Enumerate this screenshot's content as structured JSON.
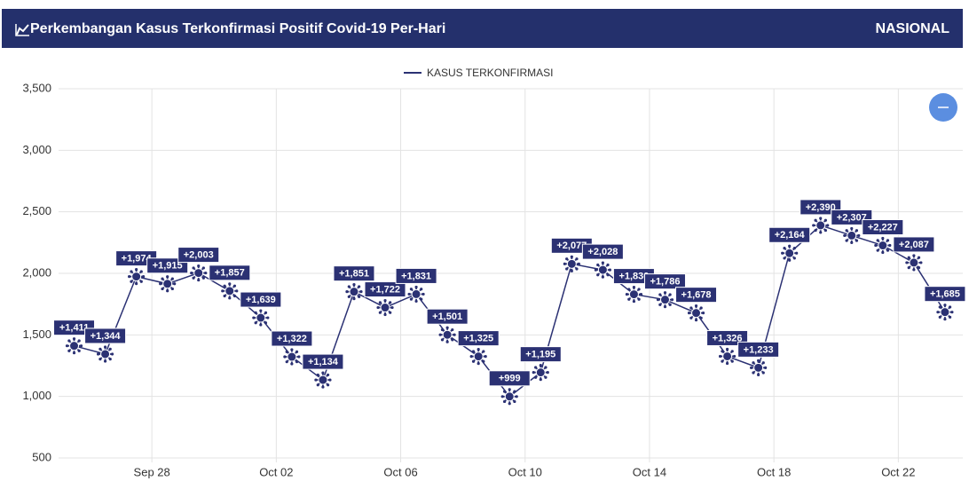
{
  "header": {
    "title": "Perkembangan Kasus Terkonfirmasi Positif Covid-19 Per-Hari",
    "scope": "NASIONAL"
  },
  "chart_data": {
    "type": "line",
    "categories": [
      "Sep 25",
      "Sep 26",
      "Sep 27",
      "Sep 28",
      "Sep 29",
      "Sep 30",
      "Oct 01",
      "Oct 02",
      "Oct 03",
      "Oct 04",
      "Oct 05",
      "Oct 06",
      "Oct 07",
      "Oct 08",
      "Oct 09",
      "Oct 10",
      "Oct 11",
      "Oct 12",
      "Oct 13",
      "Oct 14",
      "Oct 15",
      "Oct 16",
      "Oct 17",
      "Oct 18",
      "Oct 19",
      "Oct 20",
      "Oct 21",
      "Oct 22",
      "Oct 23"
    ],
    "series": [
      {
        "name": "KASUS TERKONFIRMASI",
        "color": "#2b3173",
        "values": [
          1411,
          1344,
          1974,
          1915,
          2003,
          1857,
          1639,
          1322,
          1134,
          1851,
          1722,
          1831,
          1501,
          1325,
          999,
          1195,
          2077,
          2028,
          1830,
          1786,
          1678,
          1326,
          1233,
          2164,
          2390,
          2307,
          2227,
          2087,
          1685
        ],
        "value_labels": [
          "+1,411",
          "+1,344",
          "+1,974",
          "+1,915",
          "+2,003",
          "+1,857",
          "+1,639",
          "+1,322",
          "+1,134",
          "+1,851",
          "+1,722",
          "+1,831",
          "+1,501",
          "+1,325",
          "+999",
          "+1,195",
          "+2,077",
          "+2,028",
          "+1,830",
          "+1,786",
          "+1,678",
          "+1,326",
          "+1,233",
          "+2,164",
          "+2,390",
          "+2,307",
          "+2,227",
          "+2,087",
          "+1,685"
        ]
      }
    ],
    "xticks": [
      "Sep 28",
      "Oct 02",
      "Oct 06",
      "Oct 10",
      "Oct 14",
      "Oct 18",
      "Oct 22"
    ],
    "ylim": [
      500,
      3500
    ],
    "yticks": [
      {
        "value": 500,
        "label": "500"
      },
      {
        "value": 1000,
        "label": "1,000"
      },
      {
        "value": 1500,
        "label": "1,500"
      },
      {
        "value": 2000,
        "label": "2,000"
      },
      {
        "value": 2500,
        "label": "2,500"
      },
      {
        "value": 3000,
        "label": "3,000"
      },
      {
        "value": 3500,
        "label": "3,500"
      }
    ],
    "grid": true
  }
}
